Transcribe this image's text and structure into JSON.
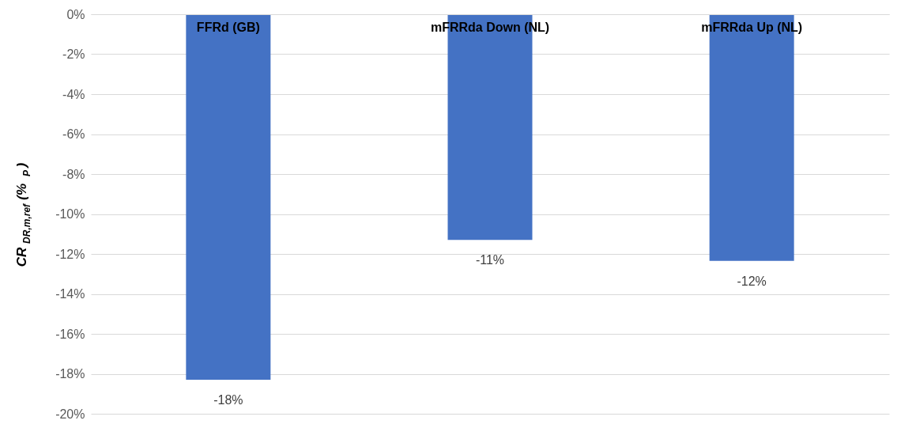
{
  "chart_data": {
    "type": "bar",
    "categories": [
      "FFRd (GB)",
      "mFRRda Down (NL)",
      "mFRRda Up (NL)"
    ],
    "values": [
      -18.3,
      -11.3,
      -12.35
    ],
    "value_labels": [
      "-18%",
      "-11%",
      "-12%"
    ],
    "color": "#4472c4",
    "ylabel": "CR$_{DR,m,ref}$ (%$_{P}$)",
    "ylim": [
      -20,
      0
    ],
    "yticks": [
      {
        "value": 0,
        "label": "0%"
      },
      {
        "value": -2,
        "label": "-2%"
      },
      {
        "value": -4,
        "label": "-4%"
      },
      {
        "value": -6,
        "label": "-6%"
      },
      {
        "value": -8,
        "label": "-8%"
      },
      {
        "value": -10,
        "label": "-10%"
      },
      {
        "value": -12,
        "label": "-12%"
      },
      {
        "value": -14,
        "label": "-14%"
      },
      {
        "value": -16,
        "label": "-16%"
      },
      {
        "value": -18,
        "label": "-18%"
      },
      {
        "value": -20,
        "label": "-20%"
      }
    ],
    "grid": "y"
  }
}
